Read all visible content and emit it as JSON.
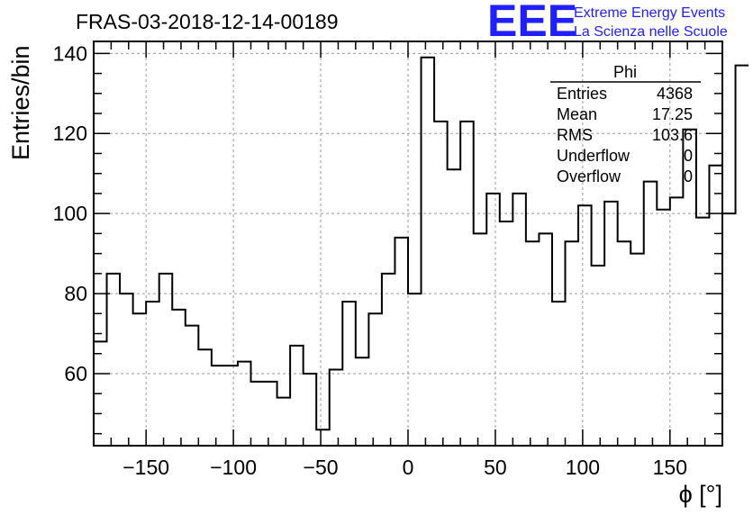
{
  "chart_data": {
    "type": "histogram",
    "title": "FRAS-03-2018-12-14-00189",
    "xlabel": "ϕ [°]",
    "ylabel": "Entries/bin",
    "xlim": [
      -180,
      180
    ],
    "ylim": [
      42,
      143
    ],
    "x_ticks": [
      -150,
      -100,
      -50,
      0,
      50,
      100,
      150
    ],
    "y_ticks": [
      60,
      80,
      100,
      120,
      140
    ],
    "grid": true,
    "bin_width": 7.5,
    "bin_edges_start": -180,
    "values": [
      68,
      85,
      80,
      75,
      78,
      85,
      76,
      72,
      66,
      62,
      62,
      63,
      58,
      58,
      54,
      67,
      60,
      46,
      61,
      78,
      64,
      75,
      85,
      94,
      80,
      139,
      123,
      111,
      123,
      95,
      105,
      98,
      105,
      93,
      95,
      78,
      93,
      102,
      87,
      103,
      93,
      90,
      108,
      101,
      104,
      121,
      99,
      112,
      100,
      137
    ],
    "stats_box": {
      "name": "Phi",
      "rows": [
        {
          "label": "Entries",
          "value": "4368"
        },
        {
          "label": "Mean",
          "value": "17.25"
        },
        {
          "label": "RMS",
          "value": "103.6"
        },
        {
          "label": "Underflow",
          "value": "0"
        },
        {
          "label": "Overflow",
          "value": "0"
        }
      ],
      "placement": "top-right"
    }
  },
  "logo": {
    "mark": "EEE",
    "line1": "Extreme Energy Events",
    "line2": "La Scienza nelle Scuole",
    "color": "#1f1fff"
  }
}
